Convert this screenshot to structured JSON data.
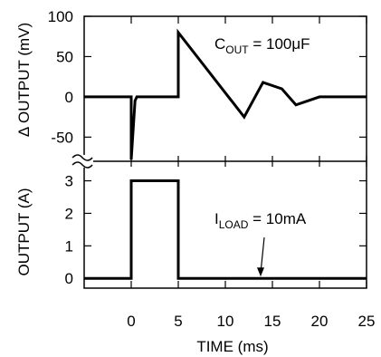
{
  "chart_data": [
    {
      "type": "line",
      "panel": "upper",
      "ylabel": "Δ OUTPUT (mV)",
      "xlim": [
        -5,
        25
      ],
      "ylim": [
        -80,
        100
      ],
      "yticks": [
        -50,
        0,
        50,
        100
      ],
      "ytick_labels": [
        "-50",
        "0",
        "50",
        "100"
      ],
      "series": [
        {
          "x": [
            -5,
            0,
            0,
            0.4,
            0.6,
            5,
            5,
            12,
            14,
            16,
            17.5,
            20,
            25
          ],
          "y": [
            0,
            0,
            -78,
            -5,
            0,
            0,
            80,
            -25,
            18,
            10,
            -10,
            0,
            0
          ]
        }
      ],
      "annotation": {
        "text_main": "C",
        "text_sub": "OUT",
        "text_rest": " = 100μF"
      },
      "grid": false
    },
    {
      "type": "line",
      "panel": "lower",
      "ylabel": "OUTPUT (A)",
      "xlabel": "TIME (ms)",
      "xlim": [
        -5,
        25
      ],
      "ylim": [
        -0.3,
        3.6
      ],
      "xticks": [
        0,
        5,
        10,
        15,
        20,
        25
      ],
      "xtick_labels": [
        "0",
        "5",
        "10",
        "15",
        "20",
        "25"
      ],
      "yticks": [
        0,
        1,
        2,
        3
      ],
      "ytick_labels": [
        "0",
        "1",
        "2",
        "3"
      ],
      "series": [
        {
          "x": [
            -5,
            0,
            0,
            5,
            5,
            25
          ],
          "y": [
            0,
            0,
            3,
            3,
            0,
            0
          ]
        }
      ],
      "annotation": {
        "text_main": "I",
        "text_sub": "LOAD",
        "text_rest": " = 10mA"
      },
      "grid": false
    }
  ]
}
